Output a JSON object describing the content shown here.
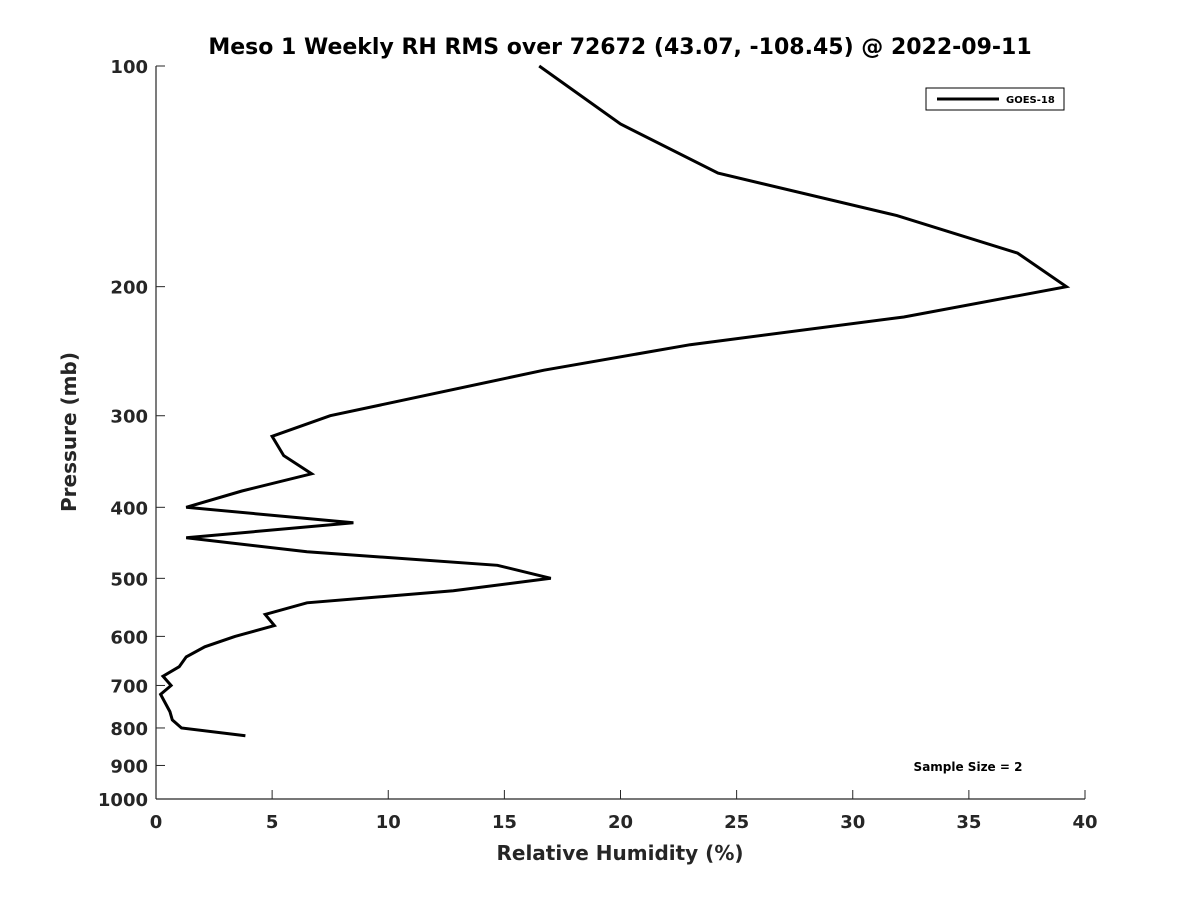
{
  "chart_data": {
    "type": "line",
    "title": "Meso 1 Weekly RH RMS over 72672 (43.07, -108.45) @ 2022-09-11",
    "xlabel": "Relative Humidity (%)",
    "ylabel": "Pressure (mb)",
    "xlim": [
      0,
      40
    ],
    "ylim": [
      100,
      1000
    ],
    "yscale": "log",
    "yreversed": true,
    "grid": false,
    "x_ticks": [
      "0",
      "5",
      "10",
      "15",
      "20",
      "25",
      "30",
      "35",
      "40"
    ],
    "y_ticks": [
      "100",
      "200",
      "300",
      "400",
      "500",
      "600",
      "700",
      "800",
      "900",
      "1000"
    ],
    "legend": {
      "placement": "top-right",
      "entries": [
        "GOES-18"
      ]
    },
    "annotation": "Sample Size = 2",
    "series": [
      {
        "name": "GOES-18",
        "color": "#000000",
        "points": [
          [
            16.5,
            100
          ],
          [
            20.0,
            120
          ],
          [
            24.2,
            140
          ],
          [
            31.9,
            160
          ],
          [
            37.1,
            180
          ],
          [
            39.2,
            200
          ],
          [
            32.2,
            220
          ],
          [
            23.0,
            240
          ],
          [
            16.7,
            260
          ],
          [
            7.5,
            300
          ],
          [
            5.0,
            320
          ],
          [
            5.5,
            340
          ],
          [
            6.7,
            360
          ],
          [
            3.7,
            380
          ],
          [
            1.3,
            400
          ],
          [
            8.5,
            420
          ],
          [
            1.3,
            440
          ],
          [
            6.5,
            460
          ],
          [
            14.7,
            480
          ],
          [
            17.0,
            500
          ],
          [
            12.8,
            520
          ],
          [
            6.5,
            540
          ],
          [
            4.7,
            560
          ],
          [
            5.1,
            580
          ],
          [
            3.4,
            600
          ],
          [
            2.1,
            620
          ],
          [
            1.3,
            640
          ],
          [
            1.0,
            660
          ],
          [
            0.3,
            680
          ],
          [
            0.65,
            700
          ],
          [
            0.2,
            720
          ],
          [
            0.6,
            760
          ],
          [
            0.7,
            780
          ],
          [
            1.1,
            800
          ],
          [
            3.85,
            820
          ]
        ]
      }
    ]
  }
}
